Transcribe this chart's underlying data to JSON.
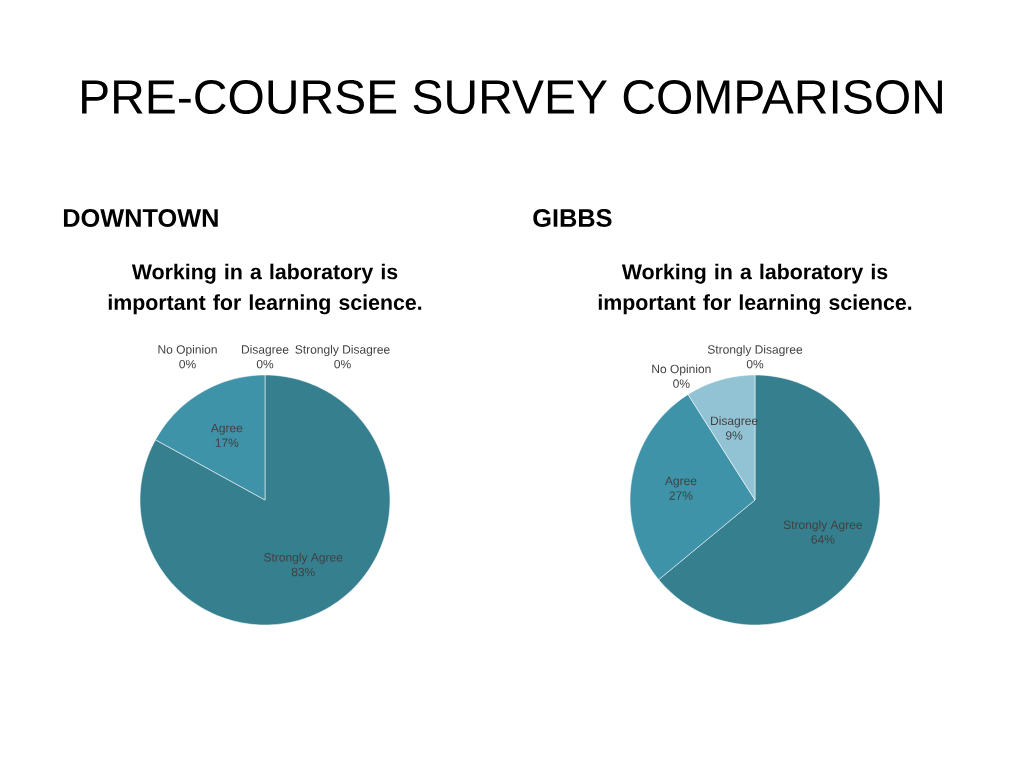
{
  "chart_data": [
    {
      "type": "pie",
      "title": "DOWNTOWN",
      "subtitle": "Working in a laboratory is important for learning science.",
      "annotations": [
        "PRE-COURSE SURVEY COMPARISON"
      ],
      "categories": [
        "Strongly Agree",
        "Agree",
        "No Opinion",
        "Disagree",
        "Strongly Disagree"
      ],
      "values": [
        83,
        17,
        0,
        0,
        0
      ],
      "value_labels": [
        "83%",
        "17%",
        "0%",
        "0%",
        "0%"
      ],
      "colors": [
        "#357f8f",
        "#3f93a8",
        "#5aa7ba",
        "#92c3d4",
        "#b0d4e0"
      ]
    },
    {
      "type": "pie",
      "title": "GIBBS",
      "subtitle": "Working in a laboratory is important for learning science.",
      "categories": [
        "Strongly Agree",
        "Agree",
        "No Opinion",
        "Disagree",
        "Strongly Disagree"
      ],
      "values": [
        64,
        27,
        0,
        9,
        0
      ],
      "value_labels": [
        "64%",
        "27%",
        "0%",
        "9%",
        "0%"
      ],
      "colors": [
        "#357f8f",
        "#3f93a8",
        "#5aa7ba",
        "#92c3d4",
        "#b0d4e0"
      ]
    }
  ]
}
